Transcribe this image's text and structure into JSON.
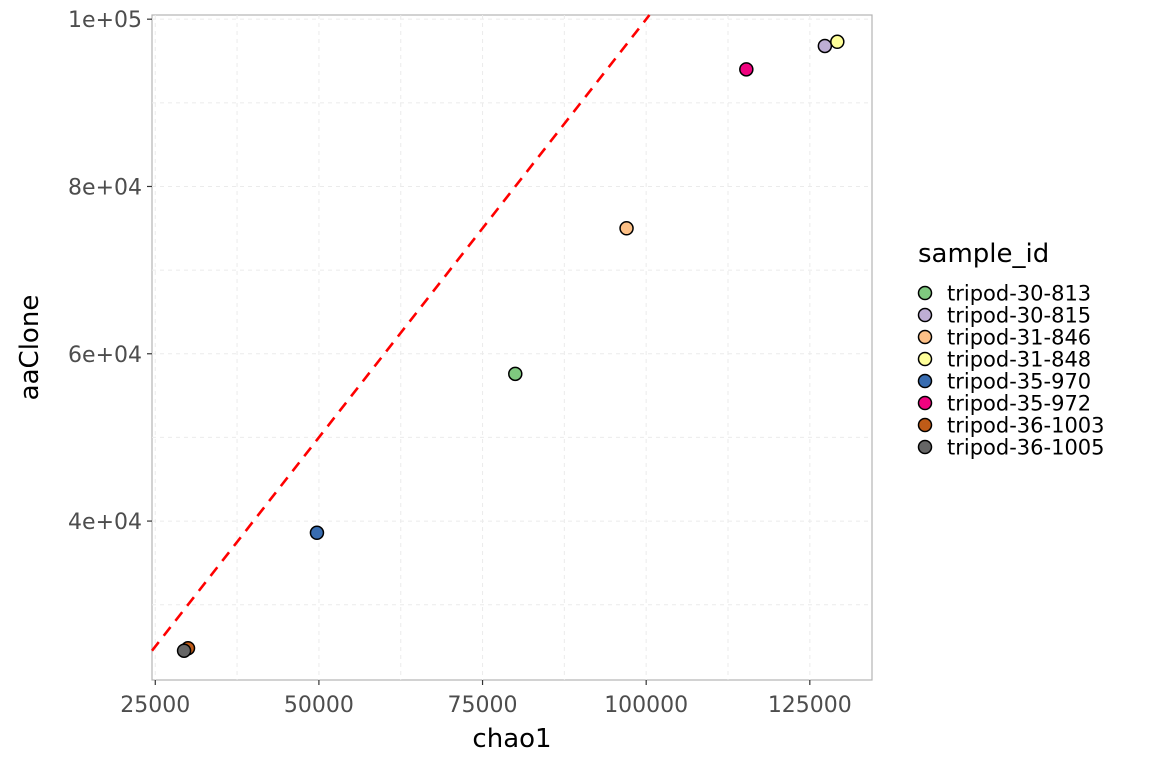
{
  "chart_data": {
    "type": "scatter",
    "title": "",
    "xlabel": "chao1",
    "ylabel": "aaClone",
    "xlim": [
      24500,
      134500
    ],
    "ylim": [
      21000,
      100500
    ],
    "x_ticks": [
      25000,
      50000,
      75000,
      100000,
      125000
    ],
    "x_tick_labels": [
      "25000",
      "50000",
      "75000",
      "100000",
      "125000"
    ],
    "y_ticks": [
      40000,
      60000,
      80000,
      100000
    ],
    "y_tick_labels": [
      "4e+04",
      "6e+04",
      "8e+04",
      "1e+05"
    ],
    "grid": true,
    "legend_title": "sample_id",
    "legend_position": "right",
    "reference_line": {
      "type": "identity",
      "slope": 1,
      "intercept": 0,
      "color": "#ff0000",
      "style": "dashed"
    },
    "series": [
      {
        "name": "tripod-30-813",
        "color": "#7fc97f",
        "x": [
          80000
        ],
        "y": [
          57600
        ]
      },
      {
        "name": "tripod-30-815",
        "color": "#beaed4",
        "x": [
          127300
        ],
        "y": [
          96800
        ]
      },
      {
        "name": "tripod-31-846",
        "color": "#fdc086",
        "x": [
          97000
        ],
        "y": [
          75000
        ]
      },
      {
        "name": "tripod-31-848",
        "color": "#ffff99",
        "x": [
          129200
        ],
        "y": [
          97300
        ]
      },
      {
        "name": "tripod-35-970",
        "color": "#386cb0",
        "x": [
          49700
        ],
        "y": [
          38600
        ]
      },
      {
        "name": "tripod-35-972",
        "color": "#f0027f",
        "x": [
          115300
        ],
        "y": [
          94000
        ]
      },
      {
        "name": "tripod-36-1003",
        "color": "#bf5b17",
        "x": [
          30000
        ],
        "y": [
          24800
        ]
      },
      {
        "name": "tripod-36-1005",
        "color": "#666666",
        "x": [
          29400
        ],
        "y": [
          24500
        ]
      }
    ]
  }
}
